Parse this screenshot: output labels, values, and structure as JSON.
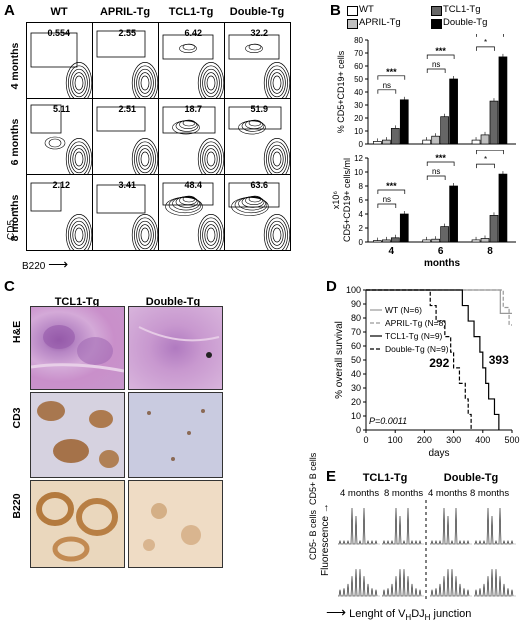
{
  "panel_labels": {
    "a": "A",
    "b": "B",
    "c": "C",
    "d": "D",
    "e": "E"
  },
  "panelA": {
    "columns": [
      "WT",
      "APRIL-Tg",
      "TCL1-Tg",
      "Double-Tg"
    ],
    "rows": [
      {
        "label": "4 months",
        "values": [
          "0.554",
          "2.55",
          "6.42",
          "32.2"
        ]
      },
      {
        "label": "6 months",
        "values": [
          "5.11",
          "2.51",
          "18.7",
          "51.9"
        ]
      },
      {
        "label": "8 months",
        "values": [
          "2.12",
          "3.41",
          "48.4",
          "63.6"
        ]
      }
    ],
    "y_axis": "CD5",
    "x_axis": "B220"
  },
  "panelC": {
    "columns": [
      "TCL1-Tg",
      "Double-Tg"
    ],
    "rows": [
      "H&E",
      "CD3",
      "B220"
    ]
  },
  "panelE": {
    "groups": [
      "TCL1-Tg",
      "Double-Tg"
    ],
    "timepoints": [
      "4 months",
      "8 months",
      "4 months",
      "8 months"
    ],
    "row_labels": [
      "CD5+ B cells",
      "CD5- B cells"
    ],
    "y_axis": "Fluorescence",
    "x_axis_prefix": "Lenght of V",
    "x_axis_sub1": "H",
    "x_axis_mid": "DJ",
    "x_axis_sub2": "H",
    "x_axis_suffix": " junction"
  },
  "chart_data": [
    {
      "type": "bar",
      "panel": "B-top",
      "ylabel": "% CD5+CD19+ cells",
      "ylim": [
        0,
        80
      ],
      "yticks": [
        "0",
        "10",
        "20",
        "30",
        "40",
        "50",
        "60",
        "70",
        "80"
      ],
      "categories": [
        "4",
        "6",
        "8"
      ],
      "series": [
        {
          "name": "WT",
          "color": "#ffffff",
          "values": [
            2,
            3,
            3
          ]
        },
        {
          "name": "APRIL-Tg",
          "color": "#c0c0c0",
          "values": [
            3,
            6,
            7
          ]
        },
        {
          "name": "TCL1-Tg",
          "color": "#666666",
          "values": [
            12,
            21,
            33
          ]
        },
        {
          "name": "Double-Tg",
          "color": "#000000",
          "values": [
            34,
            50,
            67
          ]
        }
      ],
      "significance": [
        {
          "group": "4",
          "labels": [
            "ns",
            "***"
          ]
        },
        {
          "group": "6",
          "labels": [
            "ns",
            "***"
          ]
        },
        {
          "group": "8",
          "labels": [
            "*",
            "***"
          ]
        }
      ]
    },
    {
      "type": "bar",
      "panel": "B-bottom",
      "ylabel": "CD5+CD19+ cells/ml",
      "multiplier": "x10⁶",
      "xlabel": "months",
      "ylim": [
        0,
        12
      ],
      "yticks": [
        "0",
        "2",
        "4",
        "6",
        "8",
        "10",
        "12"
      ],
      "categories": [
        "4",
        "6",
        "8"
      ],
      "series": [
        {
          "name": "WT",
          "color": "#ffffff",
          "values": [
            0.2,
            0.3,
            0.3
          ]
        },
        {
          "name": "APRIL-Tg",
          "color": "#c0c0c0",
          "values": [
            0.3,
            0.4,
            0.5
          ]
        },
        {
          "name": "TCL1-Tg",
          "color": "#666666",
          "values": [
            0.6,
            2.2,
            3.8
          ]
        },
        {
          "name": "Double-Tg",
          "color": "#000000",
          "values": [
            4.0,
            8.0,
            9.7
          ]
        }
      ],
      "significance": [
        {
          "group": "4",
          "labels": [
            "ns",
            "***"
          ]
        },
        {
          "group": "6",
          "labels": [
            "ns",
            "***"
          ]
        },
        {
          "group": "8",
          "labels": [
            "*",
            "***"
          ]
        }
      ]
    },
    {
      "type": "line",
      "panel": "D",
      "ylabel": "% overall survival",
      "xlabel": "days",
      "xlim": [
        0,
        500
      ],
      "ylim": [
        0,
        100
      ],
      "xticks": [
        "0",
        "100",
        "200",
        "300",
        "400",
        "500"
      ],
      "yticks": [
        "0",
        "10",
        "20",
        "30",
        "40",
        "50",
        "60",
        "70",
        "80",
        "90",
        "100"
      ],
      "annotations": [
        "292",
        "393"
      ],
      "pvalue": "P=0.0011",
      "series": [
        {
          "name": "WT (N=6)",
          "style": "solid",
          "color": "#999999",
          "x": [
            0,
            460,
            460,
            500
          ],
          "y": [
            100,
            100,
            83.3,
            83.3
          ]
        },
        {
          "name": "APRIL-Tg (N=8)",
          "style": "dashed",
          "color": "#999999",
          "x": [
            0,
            470,
            470,
            490,
            490,
            500
          ],
          "y": [
            100,
            100,
            87.5,
            87.5,
            75,
            75
          ]
        },
        {
          "name": "TCL1-Tg (N=9)",
          "style": "solid",
          "color": "#000000",
          "x": [
            0,
            330,
            330,
            350,
            350,
            370,
            370,
            390,
            390,
            400,
            400,
            410,
            410,
            420,
            420,
            440,
            440,
            455,
            455
          ],
          "y": [
            100,
            100,
            88.9,
            88.9,
            77.8,
            77.8,
            66.7,
            66.7,
            55.6,
            55.6,
            44.4,
            44.4,
            33.3,
            33.3,
            22.2,
            22.2,
            11.1,
            11.1,
            0
          ]
        },
        {
          "name": "Double-Tg (N=9)",
          "style": "dashed",
          "color": "#000000",
          "x": [
            0,
            220,
            220,
            240,
            240,
            270,
            270,
            290,
            290,
            300,
            300,
            320,
            320,
            340,
            340,
            350,
            350,
            360,
            360
          ],
          "y": [
            100,
            100,
            88.9,
            88.9,
            77.8,
            77.8,
            66.7,
            66.7,
            55.6,
            55.6,
            44.4,
            44.4,
            33.3,
            33.3,
            22.2,
            22.2,
            11.1,
            11.1,
            0
          ]
        }
      ]
    }
  ]
}
